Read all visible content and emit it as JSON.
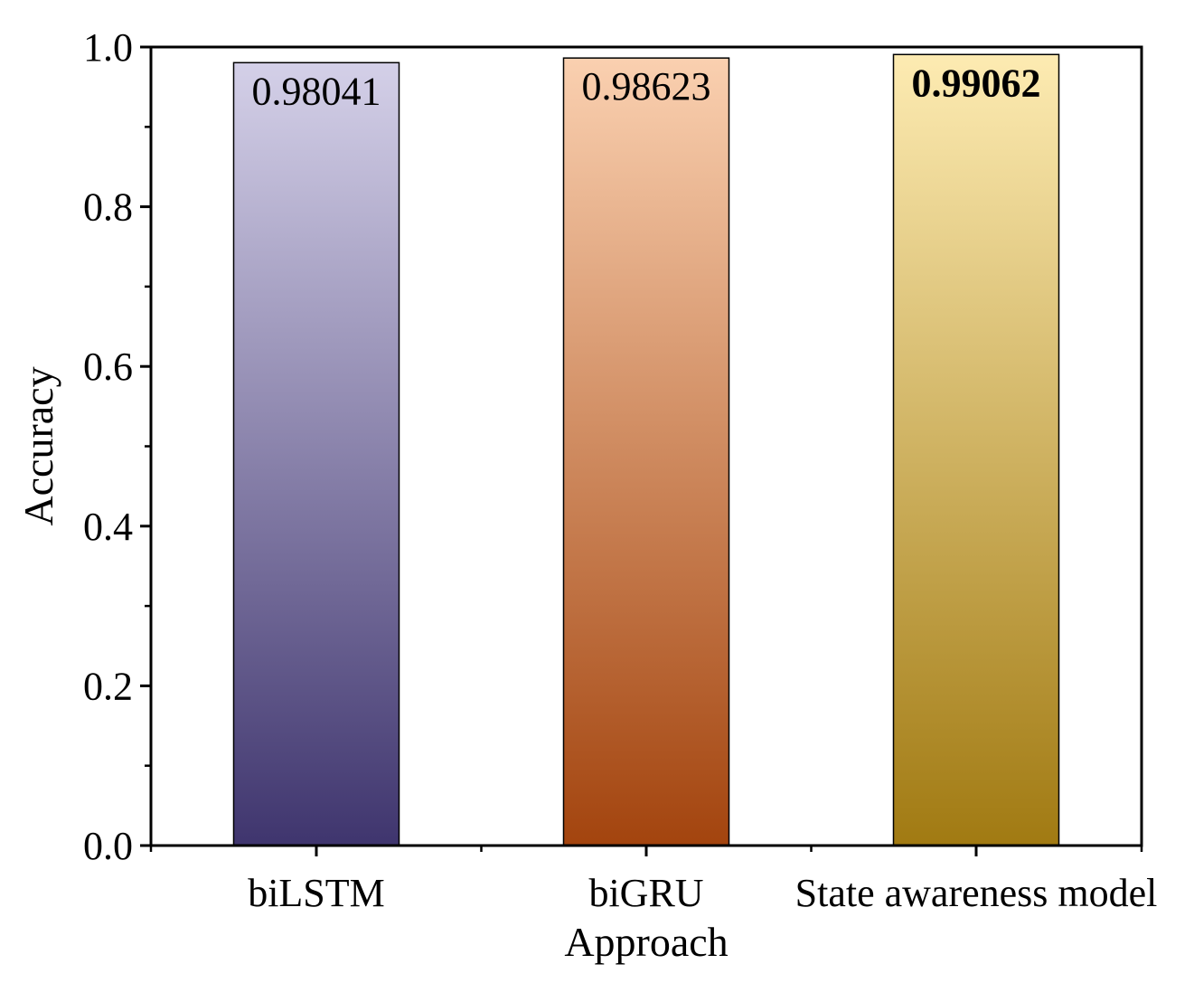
{
  "chart_data": {
    "type": "bar",
    "title": "",
    "xlabel": "Approach",
    "ylabel": "Accuracy",
    "categories": [
      "biLSTM",
      "biGRU",
      "State awareness model"
    ],
    "values": [
      0.98041,
      0.98623,
      0.99062
    ],
    "data_labels": [
      "0.98041",
      "0.98623",
      "0.99062"
    ],
    "highlight_index": 2,
    "ylim": [
      0.0,
      1.0
    ],
    "yticks": [
      0.0,
      0.2,
      0.4,
      0.6,
      0.8,
      1.0
    ],
    "ytick_labels": [
      "0.0",
      "0.2",
      "0.4",
      "0.6",
      "0.8",
      "1.0"
    ],
    "grid": false,
    "legend": "none",
    "bar_gradients": [
      {
        "top": "#d4d0e8",
        "bottom": "#3f356e"
      },
      {
        "top": "#fad0b0",
        "bottom": "#a3440e"
      },
      {
        "top": "#fdebb2",
        "bottom": "#a17a12"
      }
    ]
  }
}
